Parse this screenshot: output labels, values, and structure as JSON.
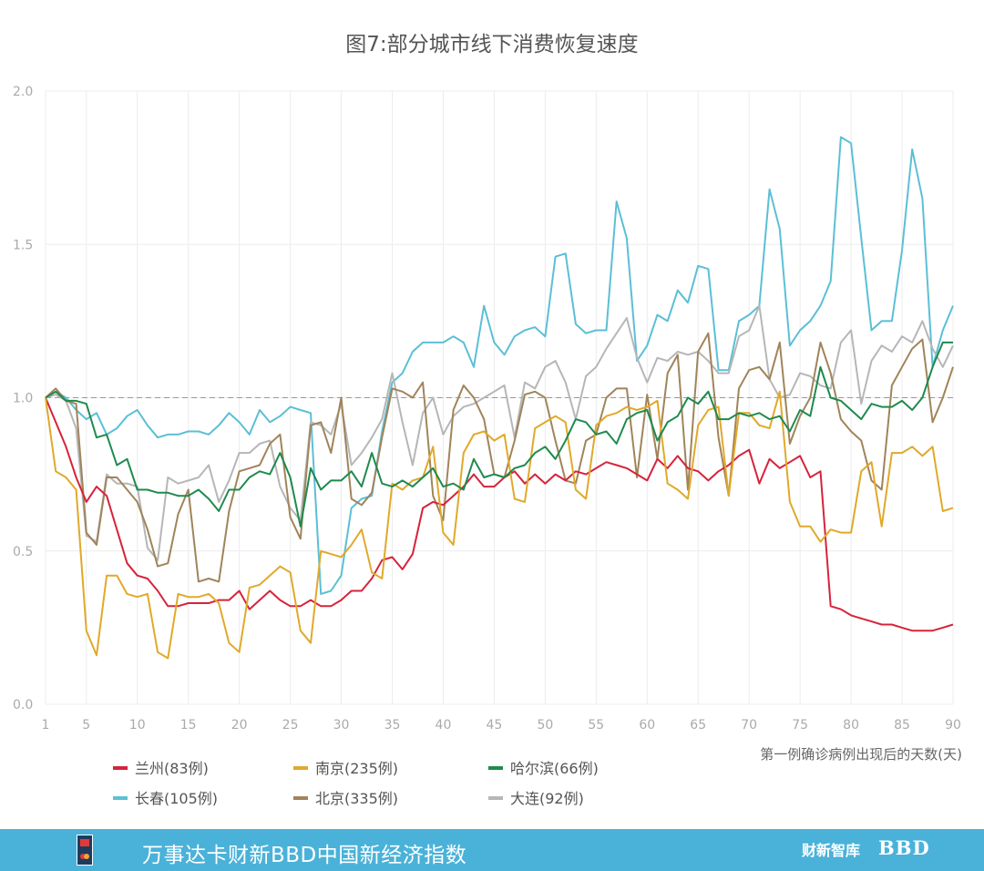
{
  "chart_data": {
    "type": "line",
    "title": "图7:部分城市线下消费恢复速度",
    "xlabel": "第一例确诊病例出现后的天数(天)",
    "ylabel": "",
    "xlim": [
      1,
      90
    ],
    "ylim": [
      0,
      2
    ],
    "x_ticks": [
      1,
      5,
      10,
      15,
      20,
      25,
      30,
      35,
      40,
      45,
      50,
      55,
      60,
      65,
      70,
      75,
      80,
      85,
      90
    ],
    "y_ticks": [
      "0.0",
      "0.5",
      "1.0",
      "1.5",
      "2.0"
    ],
    "reference_line": 1.0,
    "grid": true,
    "legend_position": "bottom",
    "x": [
      1,
      2,
      3,
      4,
      5,
      6,
      7,
      8,
      9,
      10,
      11,
      12,
      13,
      14,
      15,
      16,
      17,
      18,
      19,
      20,
      21,
      22,
      23,
      24,
      25,
      26,
      27,
      28,
      29,
      30,
      31,
      32,
      33,
      34,
      35,
      36,
      37,
      38,
      39,
      40,
      41,
      42,
      43,
      44,
      45,
      46,
      47,
      48,
      49,
      50,
      51,
      52,
      53,
      54,
      55,
      56,
      57,
      58,
      59,
      60,
      61,
      62,
      63,
      64,
      65,
      66,
      67,
      68,
      69,
      70,
      71,
      72,
      73,
      74,
      75,
      76,
      77,
      78,
      79,
      80,
      81,
      82,
      83,
      84,
      85,
      86,
      87,
      88,
      89,
      90
    ],
    "series": [
      {
        "name": "兰州(83例)",
        "color": "#d6233a",
        "values": [
          1.0,
          0.92,
          0.84,
          0.74,
          0.66,
          0.71,
          0.68,
          0.57,
          0.46,
          0.42,
          0.41,
          0.37,
          0.32,
          0.32,
          0.33,
          0.33,
          0.33,
          0.34,
          0.34,
          0.37,
          0.31,
          0.34,
          0.37,
          0.34,
          0.32,
          0.32,
          0.34,
          0.32,
          0.32,
          0.34,
          0.37,
          0.37,
          0.41,
          0.47,
          0.48,
          0.44,
          0.49,
          0.64,
          0.66,
          0.65,
          0.68,
          0.71,
          0.75,
          0.71,
          0.71,
          0.74,
          0.76,
          0.72,
          0.75,
          0.72,
          0.75,
          0.73,
          0.76,
          0.75,
          0.77,
          0.79,
          0.78,
          0.77,
          0.75,
          0.73,
          0.8,
          0.77,
          0.81,
          0.77,
          0.76,
          0.73,
          0.76,
          0.78,
          0.81,
          0.83,
          0.72,
          0.8,
          0.77,
          0.79,
          0.81,
          0.74,
          0.76,
          0.32,
          0.31,
          0.29,
          0.28,
          0.27,
          0.26,
          0.26,
          0.25,
          0.24,
          0.24,
          0.24,
          0.25,
          0.26
        ]
      },
      {
        "name": "南京(235例)",
        "color": "#e0a92a",
        "values": [
          1.0,
          0.76,
          0.74,
          0.7,
          0.24,
          0.16,
          0.42,
          0.42,
          0.36,
          0.35,
          0.36,
          0.17,
          0.15,
          0.36,
          0.35,
          0.35,
          0.36,
          0.33,
          0.2,
          0.17,
          0.38,
          0.39,
          0.42,
          0.45,
          0.43,
          0.24,
          0.2,
          0.5,
          0.49,
          0.48,
          0.52,
          0.57,
          0.43,
          0.41,
          0.72,
          0.7,
          0.73,
          0.74,
          0.84,
          0.56,
          0.52,
          0.82,
          0.88,
          0.89,
          0.86,
          0.88,
          0.67,
          0.66,
          0.9,
          0.92,
          0.94,
          0.92,
          0.7,
          0.67,
          0.91,
          0.94,
          0.95,
          0.97,
          0.96,
          0.97,
          0.99,
          0.72,
          0.7,
          0.67,
          0.91,
          0.96,
          0.97,
          0.68,
          0.95,
          0.95,
          0.91,
          0.9,
          1.02,
          0.66,
          0.58,
          0.58,
          0.53,
          0.57,
          0.56,
          0.56,
          0.76,
          0.79,
          0.58,
          0.82,
          0.82,
          0.84,
          0.81,
          0.84,
          0.63,
          0.64
        ]
      },
      {
        "name": "哈尔滨(66例)",
        "color": "#1f8a4e",
        "values": [
          1.0,
          1.02,
          0.99,
          0.99,
          0.98,
          0.87,
          0.88,
          0.78,
          0.8,
          0.7,
          0.7,
          0.69,
          0.69,
          0.68,
          0.68,
          0.7,
          0.67,
          0.63,
          0.7,
          0.7,
          0.74,
          0.76,
          0.75,
          0.82,
          0.74,
          0.58,
          0.77,
          0.7,
          0.73,
          0.73,
          0.76,
          0.71,
          0.82,
          0.72,
          0.71,
          0.73,
          0.71,
          0.74,
          0.77,
          0.71,
          0.72,
          0.7,
          0.8,
          0.74,
          0.75,
          0.74,
          0.77,
          0.78,
          0.82,
          0.84,
          0.8,
          0.86,
          0.93,
          0.92,
          0.88,
          0.89,
          0.85,
          0.93,
          0.95,
          0.96,
          0.86,
          0.92,
          0.94,
          1.0,
          0.98,
          1.02,
          0.93,
          0.93,
          0.95,
          0.94,
          0.95,
          0.93,
          0.94,
          0.89,
          0.96,
          0.94,
          1.1,
          1.0,
          0.99,
          0.96,
          0.93,
          0.98,
          0.97,
          0.97,
          0.99,
          0.96,
          1.0,
          1.1,
          1.18,
          1.18
        ]
      },
      {
        "name": "长春(105例)",
        "color": "#5bbfd6",
        "values": [
          1.0,
          1.02,
          1.0,
          0.96,
          0.93,
          0.95,
          0.88,
          0.9,
          0.94,
          0.96,
          0.91,
          0.87,
          0.88,
          0.88,
          0.89,
          0.89,
          0.88,
          0.91,
          0.95,
          0.92,
          0.88,
          0.96,
          0.92,
          0.94,
          0.97,
          0.96,
          0.95,
          0.36,
          0.37,
          0.42,
          0.64,
          0.67,
          0.68,
          0.89,
          1.05,
          1.08,
          1.15,
          1.18,
          1.18,
          1.18,
          1.2,
          1.18,
          1.1,
          1.3,
          1.18,
          1.14,
          1.2,
          1.22,
          1.23,
          1.2,
          1.46,
          1.47,
          1.24,
          1.21,
          1.22,
          1.22,
          1.64,
          1.52,
          1.12,
          1.17,
          1.27,
          1.25,
          1.35,
          1.31,
          1.43,
          1.42,
          1.09,
          1.09,
          1.25,
          1.27,
          1.3,
          1.68,
          1.55,
          1.17,
          1.22,
          1.25,
          1.3,
          1.38,
          1.85,
          1.83,
          1.52,
          1.22,
          1.25,
          1.25,
          1.48,
          1.81,
          1.65,
          1.1,
          1.22,
          1.3
        ]
      },
      {
        "name": "北京(335例)",
        "color": "#a0845a",
        "values": [
          1.0,
          1.03,
          0.99,
          0.98,
          0.56,
          0.52,
          0.74,
          0.74,
          0.7,
          0.66,
          0.57,
          0.45,
          0.46,
          0.62,
          0.7,
          0.4,
          0.41,
          0.4,
          0.63,
          0.76,
          0.77,
          0.78,
          0.85,
          0.88,
          0.61,
          0.54,
          0.91,
          0.92,
          0.82,
          1.0,
          0.67,
          0.65,
          0.69,
          0.87,
          1.03,
          1.02,
          1.0,
          1.05,
          0.68,
          0.6,
          0.96,
          1.04,
          1.0,
          0.93,
          0.75,
          0.74,
          0.86,
          1.01,
          1.02,
          1.0,
          0.86,
          0.73,
          0.72,
          0.86,
          0.88,
          1.0,
          1.03,
          1.03,
          0.74,
          1.01,
          0.8,
          1.08,
          1.14,
          0.7,
          1.15,
          1.21,
          0.87,
          0.68,
          1.03,
          1.09,
          1.1,
          1.06,
          1.18,
          0.85,
          0.94,
          1.0,
          1.18,
          1.08,
          0.93,
          0.89,
          0.86,
          0.73,
          0.7,
          1.04,
          1.1,
          1.16,
          1.19,
          0.92,
          1.0,
          1.1
        ]
      },
      {
        "name": "大连(92例)",
        "color": "#b6b6b6",
        "values": [
          1.0,
          1.01,
          0.99,
          0.9,
          0.55,
          0.53,
          0.75,
          0.72,
          0.72,
          0.71,
          0.51,
          0.47,
          0.74,
          0.72,
          0.73,
          0.74,
          0.78,
          0.66,
          0.73,
          0.82,
          0.82,
          0.85,
          0.86,
          0.71,
          0.64,
          0.6,
          0.92,
          0.91,
          0.88,
          0.98,
          0.78,
          0.82,
          0.87,
          0.93,
          1.08,
          0.92,
          0.78,
          0.95,
          1.0,
          0.88,
          0.94,
          0.97,
          0.98,
          1.0,
          1.02,
          1.04,
          0.87,
          1.05,
          1.03,
          1.1,
          1.12,
          1.05,
          0.93,
          1.07,
          1.1,
          1.16,
          1.21,
          1.26,
          1.13,
          1.05,
          1.13,
          1.12,
          1.15,
          1.14,
          1.15,
          1.12,
          1.08,
          1.08,
          1.2,
          1.22,
          1.3,
          1.06,
          1.0,
          1.01,
          1.08,
          1.07,
          1.04,
          1.03,
          1.18,
          1.22,
          0.98,
          1.12,
          1.17,
          1.15,
          1.2,
          1.18,
          1.25,
          1.16,
          1.1,
          1.17
        ]
      }
    ]
  },
  "footer": {
    "text": "万事达卡财新BBD中国新经济指数",
    "brand1": "财新智库",
    "brand2": "BBD",
    "bg_color": "#4ab2d9"
  }
}
